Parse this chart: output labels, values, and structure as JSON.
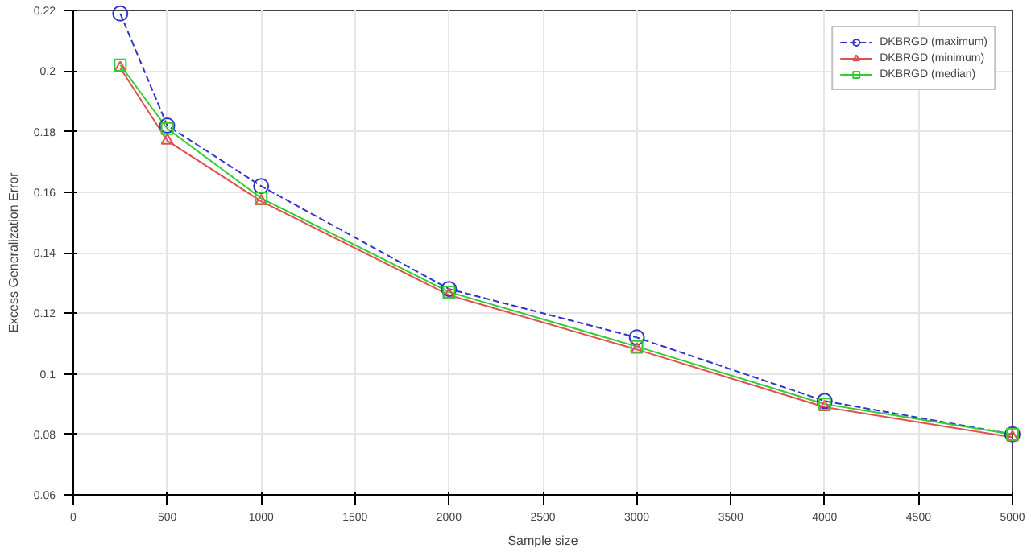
{
  "chart_data": {
    "type": "line",
    "xlabel": "Sample size",
    "ylabel": "Excess Generalization Error",
    "x": [
      250,
      500,
      1000,
      2000,
      3000,
      4000,
      5000
    ],
    "xlim": [
      0,
      5000
    ],
    "xticks": [
      0,
      500,
      1000,
      1500,
      2000,
      2500,
      3000,
      3500,
      4000,
      4500,
      5000
    ],
    "ylim": [
      0.06,
      0.22
    ],
    "yticks": [
      0.06,
      0.08,
      0.1,
      0.12,
      0.14,
      0.16,
      0.18,
      0.2,
      0.22
    ],
    "grid": true,
    "legend": "top right",
    "series": [
      {
        "name": "DKBRGD (maximum)",
        "color": "#3333cc",
        "marker": "circle",
        "line_style": "dashed",
        "values": [
          0.219,
          0.182,
          0.162,
          0.128,
          0.112,
          0.091,
          0.08
        ]
      },
      {
        "name": "DKBRGD (minimum)",
        "color": "#e05050",
        "marker": "triangle",
        "line_style": "solid",
        "values": [
          0.201,
          0.177,
          0.157,
          0.126,
          0.108,
          0.089,
          0.079
        ]
      },
      {
        "name": "DKBRGD (median)",
        "color": "#33cc33",
        "marker": "square",
        "line_style": "solid",
        "values": [
          0.202,
          0.181,
          0.158,
          0.127,
          0.109,
          0.09,
          0.08
        ]
      }
    ]
  }
}
